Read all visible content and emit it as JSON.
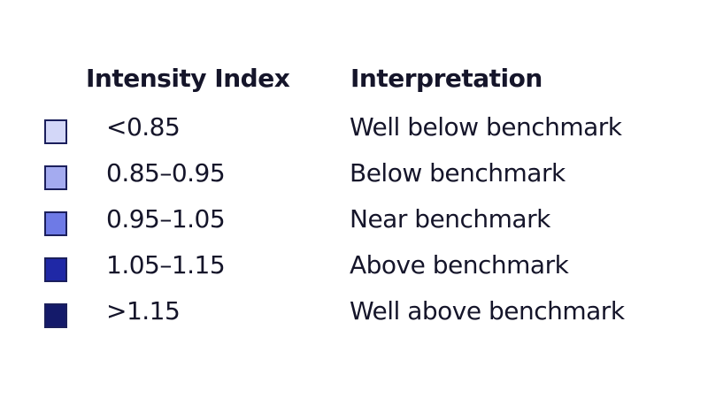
{
  "table": {
    "columns": [
      "Intensity Index",
      "Interpretation"
    ],
    "rows": [
      {
        "color": "#d3d7f8",
        "range": "<0.85",
        "interpretation": "Well below benchmark"
      },
      {
        "color": "#a4abf0",
        "range": "0.85–0.95",
        "interpretation": "Below benchmark"
      },
      {
        "color": "#6e7ae6",
        "range": "0.95–1.05",
        "interpretation": "Near benchmark"
      },
      {
        "color": "#1f28a6",
        "range": "1.05–1.15",
        "interpretation": "Above benchmark"
      },
      {
        "color": "#141a6a",
        "range": ">1.15",
        "interpretation": "Well above benchmark"
      }
    ]
  }
}
